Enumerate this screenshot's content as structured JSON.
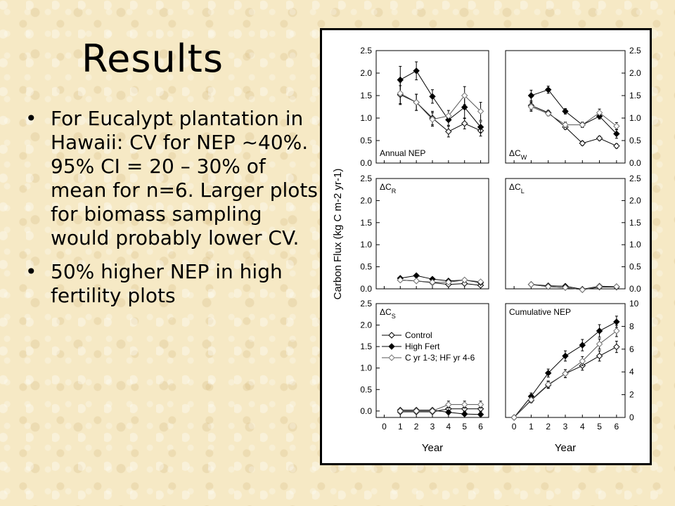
{
  "slide": {
    "title": "Results",
    "bullet_glyph": "•",
    "bullets": [
      "For Eucalypt plantation in Hawaii: CV for NEP ~40%. 95% CI = 20 – 30% of mean for n=6. Larger plots for biomass sampling would probably lower CV.",
      "50% higher NEP in high fertility plots"
    ]
  },
  "chart_data": {
    "type": "line",
    "ylabel": "Carbon Flux (kg C m-2 yr-1)",
    "xlabel": "Year",
    "x_ticks": [
      0,
      1,
      2,
      3,
      4,
      5,
      6
    ],
    "legend": {
      "placement": "inside ΔCS panel, top-left",
      "entries": [
        {
          "name": "Control",
          "marker": "open diamond"
        },
        {
          "name": "High Fert",
          "marker": "filled diamond"
        },
        {
          "name": "C yr 1-3; HF yr 4-6",
          "marker": "gray diamond"
        }
      ]
    },
    "panels": [
      {
        "id": "annual_nep",
        "label": "Annual NEP",
        "ylim": [
          0,
          2.5
        ],
        "y_ticks": [
          0.0,
          0.5,
          1.0,
          1.5,
          2.0,
          2.5
        ],
        "x": [
          1,
          2,
          3,
          4,
          5,
          6
        ],
        "series": [
          {
            "name": "Control",
            "values": [
              1.52,
              1.35,
              1.0,
              0.7,
              0.88,
              0.72
            ],
            "err": [
              0.2,
              0.18,
              0.15,
              0.12,
              0.12,
              0.12
            ]
          },
          {
            "name": "High Fert",
            "values": [
              1.85,
              2.05,
              1.48,
              0.96,
              1.24,
              0.8
            ],
            "err": [
              0.3,
              0.2,
              0.15,
              0.12,
              0.25,
              0.12
            ]
          },
          {
            "name": "C yr 1-3; HF yr 4-6",
            "values": [
              1.55,
              1.35,
              0.97,
              1.05,
              1.5,
              1.15
            ],
            "err": [
              0.25,
              0.18,
              0.15,
              0.12,
              0.2,
              0.2
            ]
          }
        ]
      },
      {
        "id": "cw",
        "label": "ΔC",
        "label_sub": "W",
        "ylim": [
          0,
          2.5
        ],
        "y_ticks": [
          0.0,
          0.5,
          1.0,
          1.5,
          2.0,
          2.5
        ],
        "x": [
          1,
          2,
          3,
          4,
          5,
          6
        ],
        "series": [
          {
            "name": "Control",
            "values": [
              1.28,
              1.12,
              0.8,
              0.44,
              0.55,
              0.38
            ],
            "err": [
              0.1,
              0.05,
              0.05,
              0.05,
              0.05,
              0.05
            ]
          },
          {
            "name": "High Fert",
            "values": [
              1.5,
              1.63,
              1.15,
              0.85,
              1.04,
              0.65
            ],
            "err": [
              0.12,
              0.08,
              0.06,
              0.06,
              0.06,
              0.1
            ]
          },
          {
            "name": "C yr 1-3; HF yr 4-6",
            "values": [
              1.25,
              1.1,
              0.85,
              0.85,
              1.12,
              0.82
            ],
            "err": [
              0.1,
              0.05,
              0.06,
              0.05,
              0.08,
              0.08
            ]
          }
        ]
      },
      {
        "id": "cr",
        "label": "ΔC",
        "label_sub": "R",
        "ylim": [
          0,
          2.5
        ],
        "y_ticks": [
          0.0,
          0.5,
          1.0,
          1.5,
          2.0,
          2.5
        ],
        "x": [
          1,
          2,
          3,
          4,
          5,
          6
        ],
        "series": [
          {
            "name": "Control",
            "values": [
              0.2,
              0.18,
              0.14,
              0.1,
              0.12,
              0.08
            ],
            "err": [
              0.02,
              0.02,
              0.02,
              0.02,
              0.02,
              0.02
            ]
          },
          {
            "name": "High Fert",
            "values": [
              0.24,
              0.3,
              0.22,
              0.18,
              0.2,
              0.14
            ],
            "err": [
              0.02,
              0.03,
              0.02,
              0.02,
              0.02,
              0.02
            ]
          },
          {
            "name": "C yr 1-3; HF yr 4-6",
            "values": [
              0.2,
              0.18,
              0.15,
              0.15,
              0.2,
              0.16
            ],
            "err": [
              0.02,
              0.02,
              0.02,
              0.02,
              0.02,
              0.02
            ]
          }
        ]
      },
      {
        "id": "cl",
        "label": "ΔC",
        "label_sub": "L",
        "ylim": [
          0,
          2.5
        ],
        "y_ticks": [
          0.0,
          0.5,
          1.0,
          1.5,
          2.0,
          2.5
        ],
        "x": [
          1,
          2,
          3,
          4,
          5,
          6
        ],
        "series": [
          {
            "name": "Control",
            "values": [
              0.1,
              0.05,
              0.03,
              -0.02,
              0.04,
              0.04
            ],
            "err": [
              0.01,
              0.01,
              0.01,
              0.01,
              0.01,
              0.01
            ]
          },
          {
            "name": "High Fert",
            "values": [
              0.1,
              0.07,
              0.06,
              -0.01,
              0.06,
              0.05
            ],
            "err": [
              0.01,
              0.01,
              0.01,
              0.01,
              0.01,
              0.01
            ]
          },
          {
            "name": "C yr 1-3; HF yr 4-6",
            "values": [
              0.1,
              0.05,
              0.03,
              -0.02,
              0.05,
              0.05
            ],
            "err": [
              0.01,
              0.01,
              0.01,
              0.01,
              0.01,
              0.01
            ]
          }
        ]
      },
      {
        "id": "cs",
        "label": "ΔC",
        "label_sub": "S",
        "ylim": [
          -0.15,
          2.5
        ],
        "y_ticks": [
          0.0,
          0.5,
          1.0,
          1.5,
          2.0,
          2.5
        ],
        "x": [
          1,
          2,
          3,
          4,
          5,
          6
        ],
        "series": [
          {
            "name": "Control",
            "values": [
              -0.02,
              -0.02,
              -0.02,
              0.05,
              0.05,
              0.05
            ],
            "err": [
              0.04,
              0.04,
              0.04,
              0.06,
              0.06,
              0.06
            ]
          },
          {
            "name": "High Fert",
            "values": [
              0.02,
              0.02,
              0.02,
              -0.03,
              -0.07,
              -0.08
            ],
            "err": [
              0.03,
              0.03,
              0.03,
              0.04,
              0.04,
              0.04
            ]
          },
          {
            "name": "C yr 1-3; HF yr 4-6",
            "values": [
              0.0,
              0.0,
              0.0,
              0.15,
              0.15,
              0.15
            ],
            "err": [
              0.06,
              0.06,
              0.06,
              0.08,
              0.08,
              0.08
            ]
          }
        ]
      },
      {
        "id": "cum_nep",
        "label": "Cumulative NEP",
        "ylim": [
          0,
          10
        ],
        "y_ticks": [
          0,
          2,
          4,
          6,
          8,
          10
        ],
        "x": [
          0,
          1,
          2,
          3,
          4,
          5,
          6
        ],
        "series": [
          {
            "name": "Control",
            "values": [
              0,
              1.5,
              2.85,
              3.85,
              4.55,
              5.4,
              6.2
            ],
            "err": [
              0,
              0.2,
              0.3,
              0.35,
              0.4,
              0.45,
              0.5
            ]
          },
          {
            "name": "High Fert",
            "values": [
              0,
              1.85,
              3.9,
              5.4,
              6.35,
              7.6,
              8.4
            ],
            "err": [
              0,
              0.3,
              0.35,
              0.45,
              0.5,
              0.55,
              0.5
            ]
          },
          {
            "name": "C yr 1-3; HF yr 4-6",
            "values": [
              0,
              1.55,
              2.9,
              3.85,
              4.95,
              6.45,
              7.6
            ],
            "err": [
              0,
              0.25,
              0.3,
              0.35,
              0.4,
              0.45,
              0.5
            ]
          }
        ]
      }
    ]
  }
}
